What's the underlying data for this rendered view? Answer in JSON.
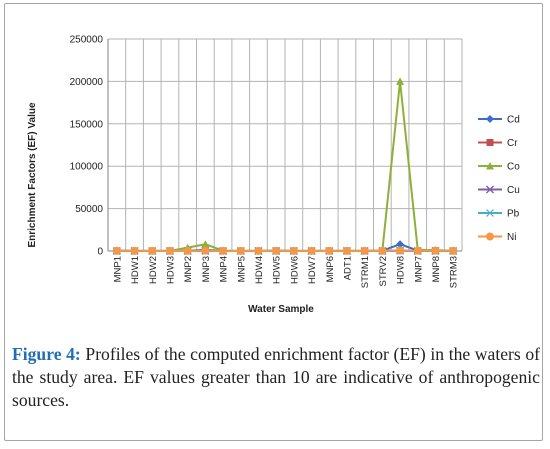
{
  "chart_data": {
    "type": "line",
    "title": "",
    "xlabel": "Water Sample",
    "ylabel": "Enrichment Factors (EF) Value",
    "ylim": [
      0,
      250000
    ],
    "yticks": [
      "0",
      "50000",
      "100000",
      "150000",
      "200000",
      "250000"
    ],
    "grid": true,
    "legend_position": "right",
    "categories": [
      "MNP1",
      "HDW1",
      "HDW2",
      "HDW3",
      "MNP2",
      "MNP3",
      "MNP4",
      "MNP5",
      "HDW4",
      "HDW5",
      "HDW6",
      "HDW7",
      "MNP6",
      "ADT1",
      "STRM1",
      "STRV2",
      "HDW8",
      "MNP7",
      "MNP8",
      "STRM3"
    ],
    "series": [
      {
        "name": "Cd",
        "color": "#3a6fc4",
        "marker": "diamond",
        "values": [
          300,
          200,
          150,
          150,
          300,
          1500,
          200,
          150,
          200,
          300,
          150,
          150,
          150,
          200,
          150,
          300,
          8000,
          500,
          600,
          200
        ]
      },
      {
        "name": "Cr",
        "color": "#c0504d",
        "marker": "square",
        "values": [
          100,
          50,
          50,
          50,
          100,
          300,
          50,
          50,
          50,
          100,
          50,
          50,
          50,
          50,
          50,
          100,
          500,
          100,
          200,
          50
        ]
      },
      {
        "name": "Co",
        "color": "#8eb03b",
        "marker": "triangle",
        "values": [
          400,
          200,
          200,
          200,
          4000,
          8000,
          300,
          200,
          200,
          300,
          200,
          200,
          200,
          200,
          200,
          400,
          200000,
          1500,
          1000,
          300
        ]
      },
      {
        "name": "Cu",
        "color": "#7f5fa3",
        "marker": "x",
        "values": [
          50,
          30,
          30,
          30,
          50,
          100,
          30,
          30,
          30,
          50,
          30,
          30,
          30,
          30,
          30,
          50,
          300,
          50,
          60,
          30
        ]
      },
      {
        "name": "Pb",
        "color": "#4bacc6",
        "marker": "star",
        "values": [
          80,
          40,
          40,
          40,
          80,
          150,
          40,
          40,
          40,
          60,
          40,
          40,
          40,
          40,
          40,
          80,
          400,
          80,
          90,
          40
        ]
      },
      {
        "name": "Ni",
        "color": "#f79646",
        "marker": "circle",
        "values": [
          200,
          100,
          100,
          100,
          200,
          500,
          100,
          100,
          100,
          200,
          100,
          100,
          100,
          100,
          100,
          200,
          600,
          300,
          400,
          100
        ]
      }
    ]
  },
  "caption": {
    "label": "Figure 4:",
    "text": " Profiles of the computed enrichment factor (EF) in the waters of the study area. EF values greater than 10 are indicative of anthropogenic sources."
  }
}
